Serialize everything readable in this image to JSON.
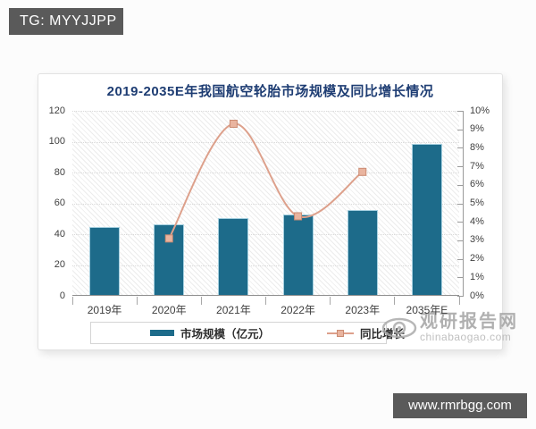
{
  "badges": {
    "telegram": "TG: MYYJJPP",
    "website": "www.rmrbgg.com"
  },
  "watermark": {
    "name": "观研报告网",
    "domain": "chinabaogao.com"
  },
  "chart_data": {
    "type": "bar+line",
    "title": "2019-2035E年我国航空轮胎市场规模及同比增长情况",
    "categories": [
      "2019年",
      "2020年",
      "2021年",
      "2022年",
      "2023年",
      "2035年E"
    ],
    "series": [
      {
        "name": "市场规模（亿元）",
        "type": "bar",
        "axis": "left",
        "values": [
          44,
          46,
          50,
          52,
          55,
          98
        ]
      },
      {
        "name": "同比增长",
        "type": "line",
        "axis": "right",
        "unit": "%",
        "values": [
          null,
          3.1,
          9.3,
          4.3,
          6.7,
          null
        ]
      }
    ],
    "left_axis": {
      "min": 0,
      "max": 120,
      "step": 20,
      "ticks": [
        "0",
        "20",
        "40",
        "60",
        "80",
        "100",
        "120"
      ]
    },
    "right_axis": {
      "min": 0,
      "max": 10,
      "step": 1,
      "ticks": [
        "0%",
        "1%",
        "2%",
        "3%",
        "4%",
        "5%",
        "6%",
        "7%",
        "8%",
        "9%",
        "10%"
      ]
    },
    "legend_position": "bottom",
    "grid": true,
    "hatched_plot_background": true,
    "colors": {
      "bar": "#1d6b8a",
      "bar_edge": "#a6d0e0",
      "line": "#dda08b",
      "marker_fill": "#e9b49f",
      "marker_stroke": "#cb8b72",
      "title": "#1e3d73"
    }
  }
}
